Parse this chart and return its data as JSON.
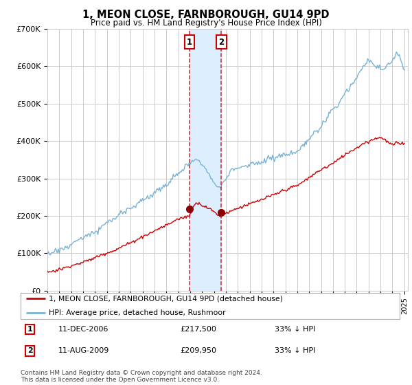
{
  "title": "1, MEON CLOSE, FARNBOROUGH, GU14 9PD",
  "subtitle": "Price paid vs. HM Land Registry's House Price Index (HPI)",
  "legend_line1": "1, MEON CLOSE, FARNBOROUGH, GU14 9PD (detached house)",
  "legend_line2": "HPI: Average price, detached house, Rushmoor",
  "annotation1_label": "1",
  "annotation1_date": "11-DEC-2006",
  "annotation1_price": "£217,500",
  "annotation1_hpi": "33% ↓ HPI",
  "annotation2_label": "2",
  "annotation2_date": "11-AUG-2009",
  "annotation2_price": "£209,950",
  "annotation2_hpi": "33% ↓ HPI",
  "footnote": "Contains HM Land Registry data © Crown copyright and database right 2024.\nThis data is licensed under the Open Government Licence v3.0.",
  "hpi_color": "#7ab3d4",
  "price_color": "#cc0000",
  "marker_color": "#8b0000",
  "vline_color": "#cc0000",
  "vband_color": "#ddeeff",
  "annotation_box_color": "#cc0000",
  "grid_color": "#cccccc",
  "background_color": "#ffffff",
  "ylim": [
    0,
    700000
  ],
  "yticks": [
    0,
    100000,
    200000,
    300000,
    400000,
    500000,
    600000,
    700000
  ],
  "ytick_labels": [
    "£0",
    "£100K",
    "£200K",
    "£300K",
    "£400K",
    "£500K",
    "£600K",
    "£700K"
  ],
  "sale1_x": 2006.94,
  "sale1_y": 217500,
  "sale2_x": 2009.61,
  "sale2_y": 209950,
  "vline1_x": 2006.94,
  "vline2_x": 2009.61,
  "vband_x1": 2006.94,
  "vband_x2": 2009.61,
  "xmin": 1995,
  "xmax": 2025.3
}
